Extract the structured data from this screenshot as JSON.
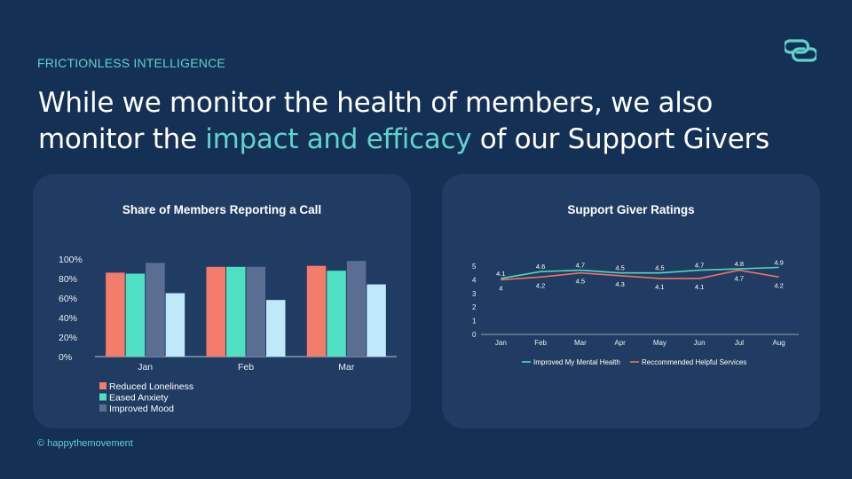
{
  "eyebrow": "FRICTIONLESS INTELLIGENCE",
  "headline": {
    "part1": "While we monitor the health of members, we also monitor the ",
    "highlight": "impact and efficacy",
    "part2": " of our Support Givers"
  },
  "footer": "© happythemovement",
  "colors": {
    "background": "#143055",
    "card": "#213c62",
    "accent": "#5fd3cc"
  },
  "chart_data": [
    {
      "type": "bar",
      "title": "Share of Members Reporting a Call",
      "categories": [
        "Jan",
        "Feb",
        "Mar"
      ],
      "yticks": [
        "0%",
        "20%",
        "40%",
        "60%",
        "80%",
        "100%"
      ],
      "ylim": [
        0,
        100
      ],
      "legend_position": "bottom-left",
      "grid": false,
      "series": [
        {
          "name": "Reduced Loneliness",
          "color": "#f47c6b",
          "values": [
            86,
            92,
            93
          ]
        },
        {
          "name": "Eased Anxiety",
          "color": "#4fe0c4",
          "values": [
            85,
            92,
            88
          ]
        },
        {
          "name": "Improved Mood",
          "color": "#5a6e93",
          "values": [
            96,
            92,
            98
          ]
        },
        {
          "name": "",
          "color": "#bfe8fb",
          "values": [
            65,
            58,
            74
          ]
        }
      ]
    },
    {
      "type": "line",
      "title": "Support Giver Ratings",
      "categories": [
        "Jan",
        "Feb",
        "Mar",
        "Apr",
        "May",
        "Jun",
        "Jul",
        "Aug"
      ],
      "yticks": [
        "0",
        "1",
        "2",
        "3",
        "4",
        "5"
      ],
      "ylim": [
        0,
        5
      ],
      "legend_position": "bottom",
      "grid": false,
      "series": [
        {
          "name": "Improved My Mental Health",
          "color": "#4fd8c3",
          "values": [
            4.1,
            4.6,
            4.7,
            4.5,
            4.5,
            4.7,
            4.8,
            4.9
          ],
          "labels": [
            "4.1",
            "4.6",
            "4.7",
            "4.5",
            "4.5",
            "4.7",
            "4.8",
            "4.9"
          ]
        },
        {
          "name": "Reccommended Helpful Services",
          "color": "#f0706a",
          "values": [
            4.0,
            4.2,
            4.5,
            4.3,
            4.1,
            4.1,
            4.7,
            4.2
          ],
          "labels": [
            "4",
            "4.2",
            "4.5",
            "4.3",
            "4.1",
            "4.1",
            "4.7",
            "4.2"
          ]
        }
      ]
    }
  ]
}
